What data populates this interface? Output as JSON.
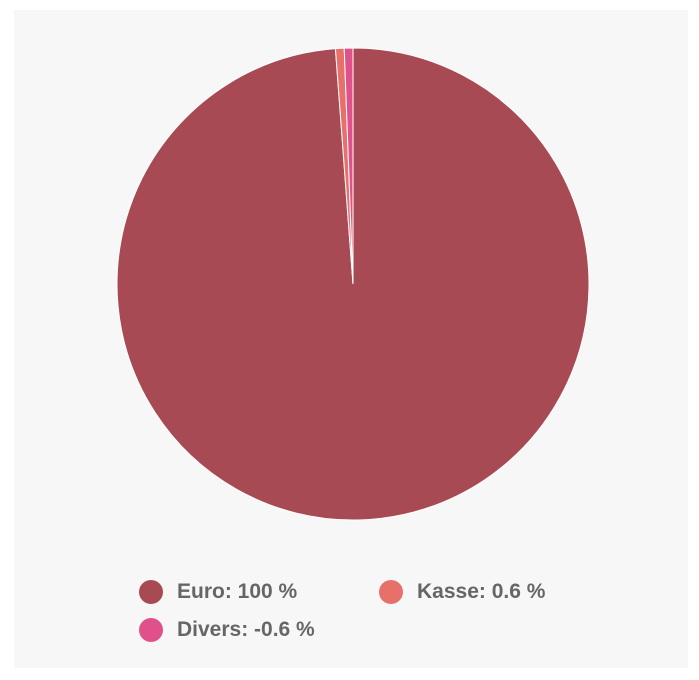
{
  "chart_data": {
    "type": "pie",
    "title": "",
    "slices": [
      {
        "name": "Euro",
        "value": 100,
        "label": "Euro: 100 %",
        "color": "#a84a54"
      },
      {
        "name": "Kasse",
        "value": 0.6,
        "label": "Kasse: 0.6 %",
        "color": "#e8706a"
      },
      {
        "name": "Divers",
        "value": -0.6,
        "label": "Divers: -0.6 %",
        "color": "#e0518b"
      }
    ],
    "legend_position": "bottom"
  }
}
